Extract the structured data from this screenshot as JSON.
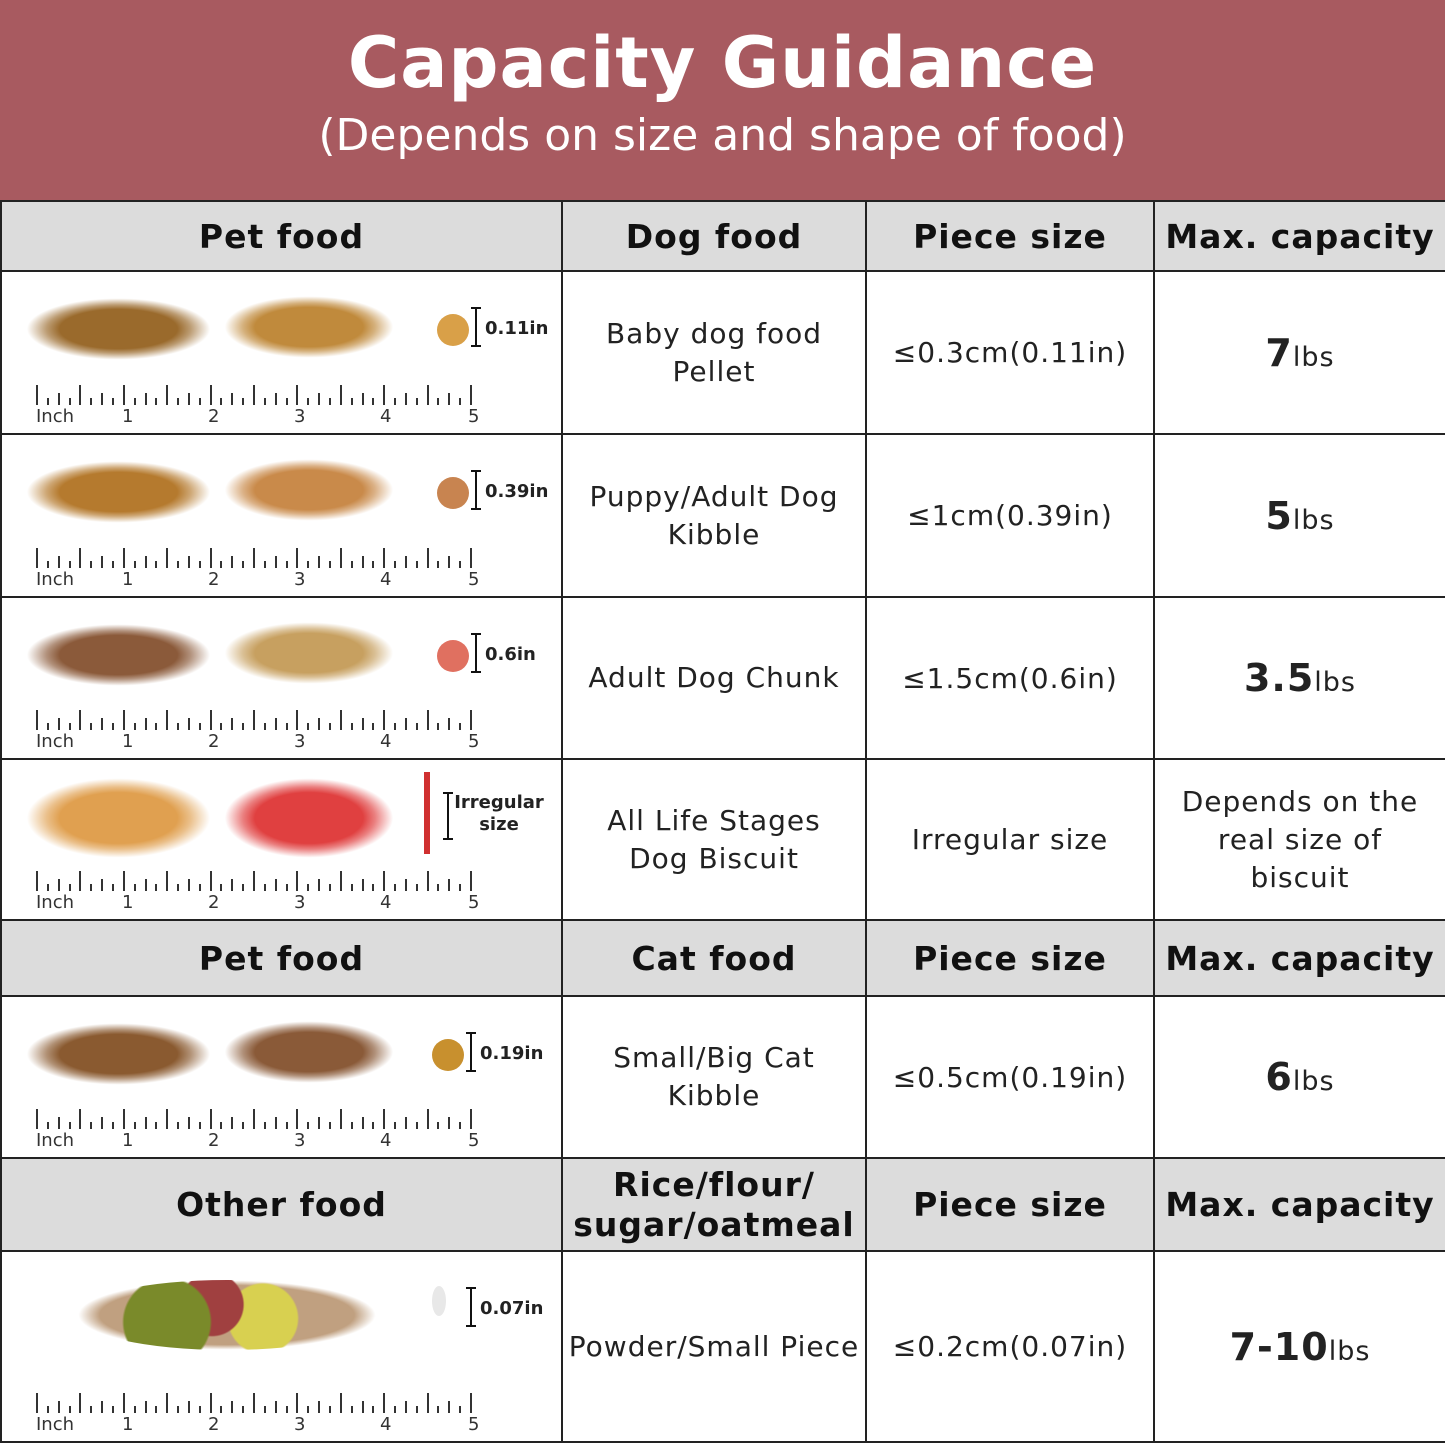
{
  "title": "Capacity Guidance",
  "subtitle": "(Depends on size and shape of food)",
  "ruler": {
    "unit": "Inch",
    "labels": [
      "1",
      "2",
      "3",
      "4",
      "5"
    ]
  },
  "sections": [
    {
      "header": [
        "Pet food",
        "Dog food",
        "Piece size",
        "Max. capacity"
      ],
      "rows": [
        {
          "piece_label": "0.11in",
          "food": "Baby dog food Pellet",
          "size": "≤0.3cm(0.11in)",
          "cap_num": "7",
          "cap_unit": "lbs",
          "colors": [
            "#9a6a2c",
            "#c08a3c",
            "#d9a048"
          ]
        },
        {
          "piece_label": "0.39in",
          "food": "Puppy/Adult Dog Kibble",
          "size": "≤1cm(0.39in)",
          "cap_num": "5",
          "cap_unit": "lbs",
          "colors": [
            "#b57a2e",
            "#c98a4a",
            "#c88450"
          ]
        },
        {
          "piece_label": "0.6in",
          "food": "Adult Dog Chunk",
          "size": "≤1.5cm(0.6in)",
          "cap_num": "3.5",
          "cap_unit": "lbs",
          "colors": [
            "#8b5a3a",
            "#c7a060",
            "#e07060"
          ]
        },
        {
          "piece_label": "Irregular size",
          "food": "All Life Stages Dog Biscuit",
          "size": "Irregular size",
          "cap_text": "Depends on the real size of biscuit",
          "colors": [
            "#e0a050",
            "#e04040",
            "#d03030"
          ]
        }
      ]
    },
    {
      "header": [
        "Pet food",
        "Cat food",
        "Piece size",
        "Max. capacity"
      ],
      "rows": [
        {
          "piece_label": "0.19in",
          "food": "Small/Big Cat Kibble",
          "size": "≤0.5cm(0.19in)",
          "cap_num": "6",
          "cap_unit": "lbs",
          "colors": [
            "#8a5a30",
            "#8a5a38",
            "#c8902e"
          ]
        }
      ]
    },
    {
      "header": [
        "Other food",
        "Rice/flour/ sugar/oatmeal",
        "Piece size",
        "Max. capacity"
      ],
      "rows": [
        {
          "piece_label": "0.07in",
          "food": "Powder/Small Piece",
          "size": "≤0.2cm(0.07in)",
          "cap_num": "7-10",
          "cap_unit": "lbs",
          "colors": [
            "#7a8a2a",
            "#a04040",
            "#e8e8e8"
          ]
        }
      ]
    }
  ]
}
